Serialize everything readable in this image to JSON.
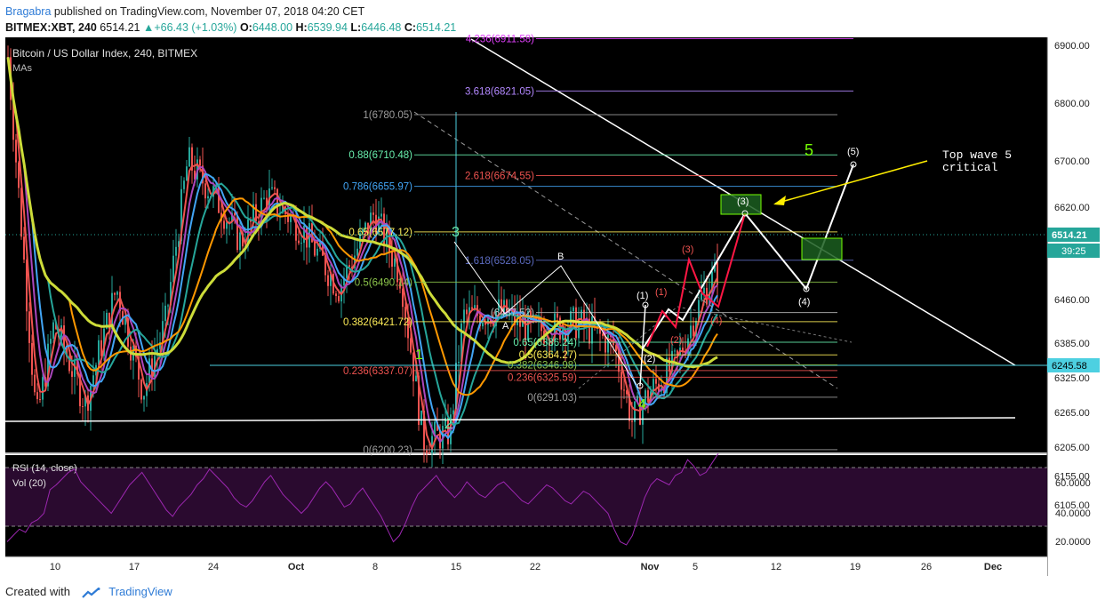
{
  "header": {
    "author": "Bragabra",
    "published": " published on TradingView.com, November 07, 2018 04:20 CET",
    "symbol": "BITMEX:XBT, 240",
    "last": "6514.21",
    "change": "+66.43 (+1.03%)",
    "o_label": "O:",
    "o_val": "6448.00",
    "h_label": "H:",
    "h_val": "6539.94",
    "l_label": "L:",
    "l_val": "6446.48",
    "c_label": "C:",
    "c_val": "6514.21"
  },
  "footer": {
    "created": "Created with",
    "brand": "TradingView"
  },
  "colors": {
    "background": "#000000",
    "up": "#26a69a",
    "down": "#ef5350",
    "rsi": "#9c27b0",
    "rsi_band": "#2a0a2f",
    "fib_yellow": "#ffee58",
    "fib_green": "#69f0ae",
    "fib_blue": "#42a5f5",
    "fib_red": "#ef5350"
  },
  "chart_data": {
    "type": "candlestick",
    "title": "Bitcoin / US Dollar Index, 240, BITMEX",
    "indicator_label": "MAs",
    "price_axis": {
      "ticks": [
        "6900.00",
        "6800.00",
        "6700.00",
        "6620.00",
        "6540.00",
        "6460.00",
        "6385.00",
        "6325.00",
        "6265.00",
        "6205.00",
        "6155.00",
        "6105.00"
      ],
      "last_price": "6514.21",
      "countdown": "39:25",
      "marker": "6245.58"
    },
    "time_axis": {
      "ticks": [
        "10",
        "17",
        "24",
        "Oct",
        "8",
        "15",
        "22",
        "Nov",
        "5",
        "12",
        "19",
        "26",
        "Dec"
      ]
    },
    "fib_levels": [
      {
        "text": "4.236(6911.58)",
        "color": "#e040fb"
      },
      {
        "text": "3.618(6821.05)",
        "color": "#b388ff"
      },
      {
        "text": "1(6780.05)",
        "color": "#9e9e9e"
      },
      {
        "text": "0.88(6710.48)",
        "color": "#69f0ae"
      },
      {
        "text": "2.618(6674.55)",
        "color": "#ef5350"
      },
      {
        "text": "0.786(6655.97)",
        "color": "#42a5f5"
      },
      {
        "text": "0.65(6577.12)",
        "color": "#ffee58"
      },
      {
        "text": "1.618(6528.05)",
        "color": "#5c6bc0"
      },
      {
        "text": "0.5(6490.14)",
        "color": "#8bc34a"
      },
      {
        "text": "(6437.52)",
        "color": "#bdbdbd"
      },
      {
        "text": "0.382(6421.72)",
        "color": "#ffee58"
      },
      {
        "text": "0.65(6386.24)",
        "color": "#69f0ae"
      },
      {
        "text": "0.5(6364.27)",
        "color": "#ffee58"
      },
      {
        "text": "0.382(6346.98)",
        "color": "#8bc34a"
      },
      {
        "text": "0.236(6337.07)",
        "color": "#ef5350"
      },
      {
        "text": "0.236(6325.59)",
        "color": "#ef5350"
      },
      {
        "text": "0(6291.03)",
        "color": "#9e9e9e"
      },
      {
        "text": "0(6200.23)",
        "color": "#9e9e9e"
      }
    ],
    "wave_labels": [
      "3",
      "1",
      "2",
      "4",
      "5",
      "A",
      "B",
      "(1)",
      "(2)",
      "(3)",
      "(4)",
      "(5)",
      "(1)",
      "(2)",
      "(3)",
      "(4)"
    ],
    "annotation": [
      "Top wave 5",
      "critical"
    ],
    "rsi": {
      "label": "RSI (14, close)",
      "vol_label": "Vol (20)",
      "ticks": [
        "60.0000",
        "40.0000",
        "20.0000"
      ],
      "values": [
        22,
        26,
        30,
        28,
        34,
        36,
        40,
        55,
        58,
        62,
        66,
        68,
        60,
        56,
        52,
        48,
        44,
        40,
        46,
        52,
        58,
        62,
        66,
        60,
        54,
        48,
        42,
        38,
        44,
        48,
        52,
        58,
        62,
        68,
        64,
        60,
        56,
        50,
        46,
        44,
        48,
        54,
        60,
        64,
        58,
        52,
        48,
        44,
        40,
        44,
        50,
        56,
        60,
        56,
        50,
        44,
        46,
        52,
        56,
        50,
        44,
        38,
        30,
        22,
        26,
        34,
        44,
        52,
        56,
        60,
        64,
        58,
        54,
        50,
        54,
        60,
        56,
        52,
        50,
        54,
        58,
        60,
        56,
        52,
        48,
        46,
        50,
        54,
        58,
        56,
        52,
        48,
        46,
        50,
        54,
        52,
        48,
        44,
        40,
        30,
        22,
        20,
        26,
        38,
        50,
        58,
        62,
        60,
        58,
        64,
        66,
        74,
        70,
        64,
        66,
        72,
        78
      ]
    }
  }
}
